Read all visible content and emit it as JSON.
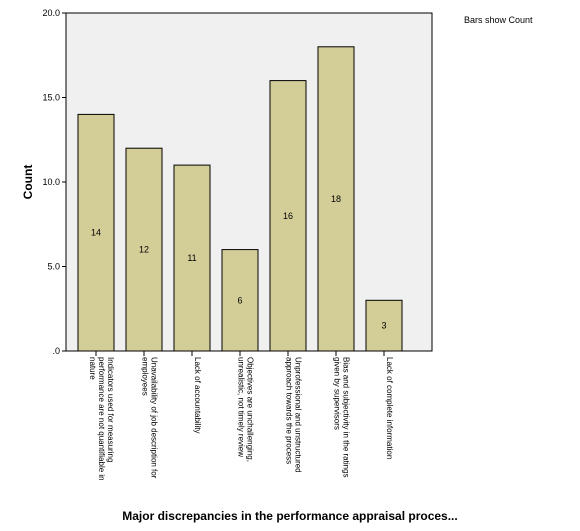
{
  "note": "Bars show Count",
  "chart_data": {
    "type": "bar",
    "categories": [
      "Indicators used for measuring performance are not quantifiable in nature",
      "Unavailability of job description for employees",
      "Lack of accountability",
      "Objectives are unchallenging, unrealistic, not timely review",
      "Unprofessional and unstructured approach towards the process",
      "Bias and subjectivity in the ratings given by supervisors",
      "Lack of complete information"
    ],
    "category_lines": [
      [
        "Indicators used for measuring",
        "performance are not quantifiable in",
        "nature"
      ],
      [
        "Unavailability of job description for",
        "employees"
      ],
      [
        "Lack of accountability"
      ],
      [
        "Objectives are unchallenging,",
        "unrealistic, not timely review"
      ],
      [
        "Unprofessional and unstructured",
        "approach towards the process"
      ],
      [
        "Bias and subjectivity in the ratings",
        "given by supervisors"
      ],
      [
        "Lack of complete information"
      ]
    ],
    "values": [
      14,
      12,
      11,
      6,
      16,
      18,
      3
    ],
    "data_labels": [
      "14",
      "12",
      "11",
      "6",
      "16",
      "18",
      "3"
    ],
    "ylabel": "Count",
    "xlabel": "Major discrepancies in the performance appraisal proces...",
    "ylim": [
      0,
      20
    ],
    "yticks": [
      0,
      5,
      10,
      15,
      20
    ],
    "ytick_labels": [
      ".0",
      "5.0",
      "10.0",
      "15.0",
      "20.0"
    ],
    "grid": false,
    "colors": {
      "bar_fill": "#D3CE97",
      "bar_stroke": "#000000",
      "plot_background": "#F0F0F0"
    }
  }
}
